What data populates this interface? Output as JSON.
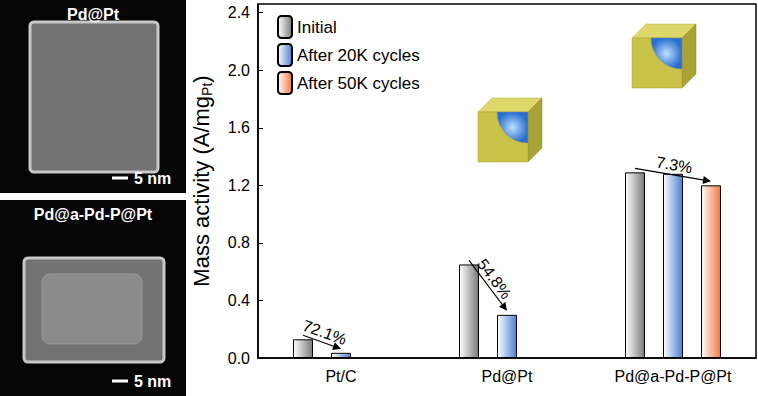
{
  "chart_data": {
    "type": "bar",
    "categories": [
      "Pt/C",
      "Pd@Pt",
      "Pd@a-Pd-P@Pt"
    ],
    "series": [
      {
        "name": "Initial",
        "color": "#7a7a7a",
        "values": [
          0.13,
          0.65,
          1.29
        ]
      },
      {
        "name": "After 20K cycles",
        "color": "#4a7fd6",
        "values": [
          0.036,
          0.3,
          1.28
        ]
      },
      {
        "name": "After 50K cycles",
        "color": "#f0783c",
        "values": [
          null,
          null,
          1.2
        ]
      }
    ],
    "ylabel": "Mass activity (A/mgPt)",
    "ylabel_subscript": "Pt",
    "ylim": [
      0,
      2.46
    ],
    "yticks": [
      {
        "value": 0,
        "label": "0.0"
      },
      0.4,
      0.8,
      1.2,
      1.6,
      {
        "value": 2,
        "label": "2.0"
      },
      2.4
    ],
    "legend": "upper left",
    "grid": false,
    "data_labels": false,
    "annotations": [
      {
        "text": "72.1%",
        "category": "Pt/C",
        "from": "Initial",
        "to": "After 20K cycles"
      },
      {
        "text": "54.8%",
        "category": "Pd@Pt",
        "from": "Initial",
        "to": "After 20K cycles"
      },
      {
        "text": "7.3%",
        "category": "Pd@a-Pd-P@Pt",
        "from": "Initial",
        "to": "After 50K cycles"
      }
    ]
  },
  "images": [
    {
      "label": "Pd@Pt",
      "scale_bar": "5 nm"
    },
    {
      "label": "Pd@a-Pd-P@Pt",
      "scale_bar": "5 nm"
    }
  ]
}
